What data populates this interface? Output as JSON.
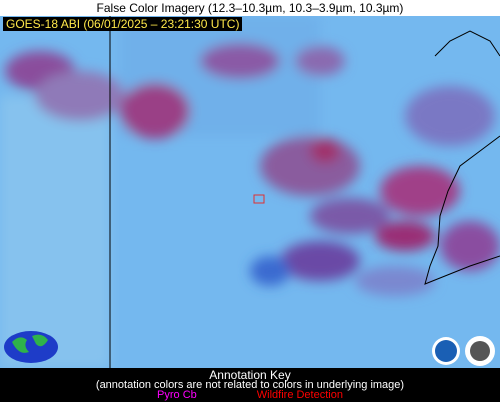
{
  "header": {
    "title": "False Color Imagery (12.3–10.3µm, 10.3–3.9µm, 10.3µm)"
  },
  "image": {
    "timestamp": "GOES-18 ABI (06/01/2025 – 23:21:30 UTC)"
  },
  "annotation_key": {
    "title": "Annotation Key",
    "note": "(annotation colors are not related to colors in underlying image)",
    "items": [
      "Pyro Cb",
      "Wildfire Detection"
    ]
  }
}
